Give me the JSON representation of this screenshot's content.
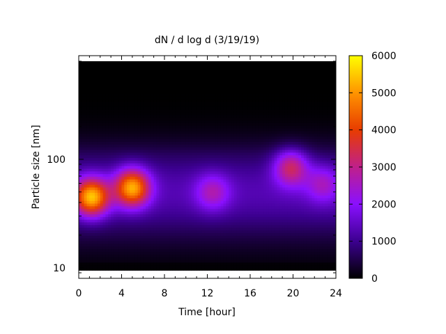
{
  "chart_data": {
    "type": "heatmap",
    "title": "dN / d log d (3/19/19)",
    "xlabel": "Time [hour]",
    "ylabel": "Particle size [nm]",
    "xlim": [
      0,
      24
    ],
    "ylim": [
      8,
      900
    ],
    "y_scale": "log",
    "x_ticks": [
      0,
      4,
      8,
      12,
      16,
      20,
      24
    ],
    "x_tick_labels": [
      "0",
      "4",
      "8",
      "12",
      "16",
      "20",
      "24"
    ],
    "y_ticks": [
      10,
      100
    ],
    "y_tick_labels": [
      "10",
      "100"
    ],
    "colorbar": {
      "range": [
        0,
        6000
      ],
      "ticks": [
        0,
        1000,
        2000,
        3000,
        4000,
        5000,
        6000
      ],
      "tick_labels": [
        "0",
        "1000",
        "2000",
        "3000",
        "4000",
        "5000",
        "6000"
      ],
      "palette": [
        "#000000",
        "#3c0090",
        "#8a10ff",
        "#c0208a",
        "#e83c00",
        "#ff9400",
        "#ffff00"
      ]
    },
    "features": [
      {
        "time_h": 1.2,
        "size_nm": 45,
        "value": 5500
      },
      {
        "time_h": 5.0,
        "size_nm": 55,
        "value": 5300
      },
      {
        "time_h": 12.5,
        "size_nm": 50,
        "value": 2700
      },
      {
        "time_h": 19.8,
        "size_nm": 85,
        "value": 3600
      },
      {
        "time_h": 22.8,
        "size_nm": 60,
        "value": 2600
      }
    ],
    "grid": false
  }
}
